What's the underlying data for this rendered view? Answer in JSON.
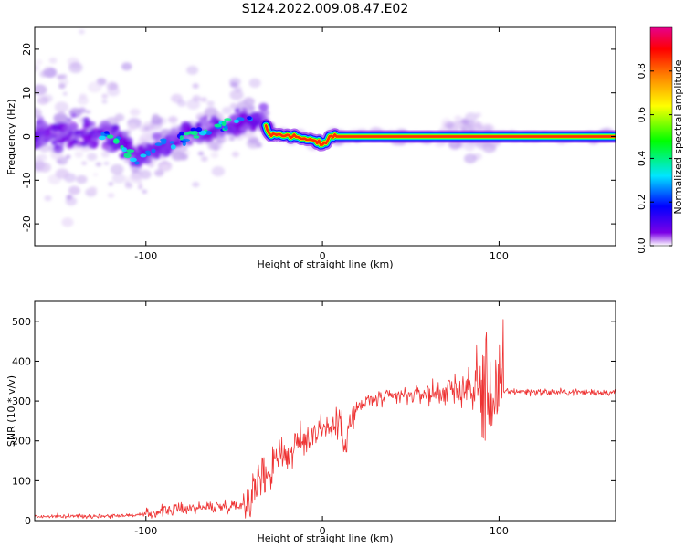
{
  "title": "S124.2022.009.08.47.E02",
  "chart_data": [
    {
      "type": "heatmap",
      "xlabel": "Height of straight line (km)",
      "ylabel": "Frequency (Hz)",
      "xlim": [
        -163,
        166
      ],
      "ylim": [
        -25,
        25
      ],
      "xticks": [
        "-100",
        "0",
        "100"
      ],
      "yticks": [
        "-20",
        "-10",
        "0",
        "10",
        "20"
      ],
      "colorbar": {
        "label": "Normalized spectral amplitude",
        "range": [
          0,
          1
        ],
        "ticks": [
          "0.0",
          "0.2",
          "0.4",
          "0.6",
          "0.8"
        ],
        "colors": [
          "#ffffff",
          "#7b00e6",
          "#0000ff",
          "#00e6ff",
          "#00ff00",
          "#ffff00",
          "#ff8000",
          "#ff0000",
          "#e6008c"
        ]
      },
      "ridge": [
        {
          "x": -160,
          "y": 0.5
        },
        {
          "x": -140,
          "y": 1.0
        },
        {
          "x": -120,
          "y": 0.0
        },
        {
          "x": -105,
          "y": -5.0
        },
        {
          "x": -90,
          "y": -2.0
        },
        {
          "x": -75,
          "y": 0.5
        },
        {
          "x": -60,
          "y": 2.0
        },
        {
          "x": -45,
          "y": 4.0
        },
        {
          "x": -33,
          "y": 3.5
        },
        {
          "x": -30,
          "y": 0.5
        },
        {
          "x": -15,
          "y": 0.0
        },
        {
          "x": -5,
          "y": -1.0
        },
        {
          "x": 0,
          "y": -2.0
        },
        {
          "x": 5,
          "y": 0.0
        },
        {
          "x": 100,
          "y": 0.0
        },
        {
          "x": 166,
          "y": 0.0
        }
      ]
    },
    {
      "type": "line",
      "xlabel": "Height of straight line (km)",
      "ylabel": "SNR (10 * v/v)",
      "xlim": [
        -163,
        166
      ],
      "ylim": [
        0,
        550
      ],
      "xticks": [
        "-100",
        "0",
        "100"
      ],
      "yticks": [
        "0",
        "100",
        "200",
        "300",
        "400",
        "500"
      ],
      "color": "#ee3333",
      "series": [
        {
          "x": -163,
          "y": 10
        },
        {
          "x": -120,
          "y": 12
        },
        {
          "x": -100,
          "y": 15
        },
        {
          "x": -90,
          "y": 25
        },
        {
          "x": -80,
          "y": 30
        },
        {
          "x": -60,
          "y": 35
        },
        {
          "x": -45,
          "y": 40
        },
        {
          "x": -40,
          "y": 70
        },
        {
          "x": -35,
          "y": 110
        },
        {
          "x": -30,
          "y": 120
        },
        {
          "x": -25,
          "y": 180
        },
        {
          "x": -20,
          "y": 160
        },
        {
          "x": -15,
          "y": 190
        },
        {
          "x": -10,
          "y": 200
        },
        {
          "x": -5,
          "y": 220
        },
        {
          "x": 0,
          "y": 240
        },
        {
          "x": 5,
          "y": 230
        },
        {
          "x": 10,
          "y": 250
        },
        {
          "x": 12,
          "y": 200
        },
        {
          "x": 15,
          "y": 240
        },
        {
          "x": 20,
          "y": 280
        },
        {
          "x": 25,
          "y": 300
        },
        {
          "x": 40,
          "y": 310
        },
        {
          "x": 60,
          "y": 320
        },
        {
          "x": 80,
          "y": 330
        },
        {
          "x": 90,
          "y": 330
        },
        {
          "x": 95,
          "y": 320
        },
        {
          "x": 100,
          "y": 320
        },
        {
          "x": 103,
          "y": 325
        },
        {
          "x": 130,
          "y": 322
        },
        {
          "x": 166,
          "y": 322
        }
      ]
    }
  ]
}
